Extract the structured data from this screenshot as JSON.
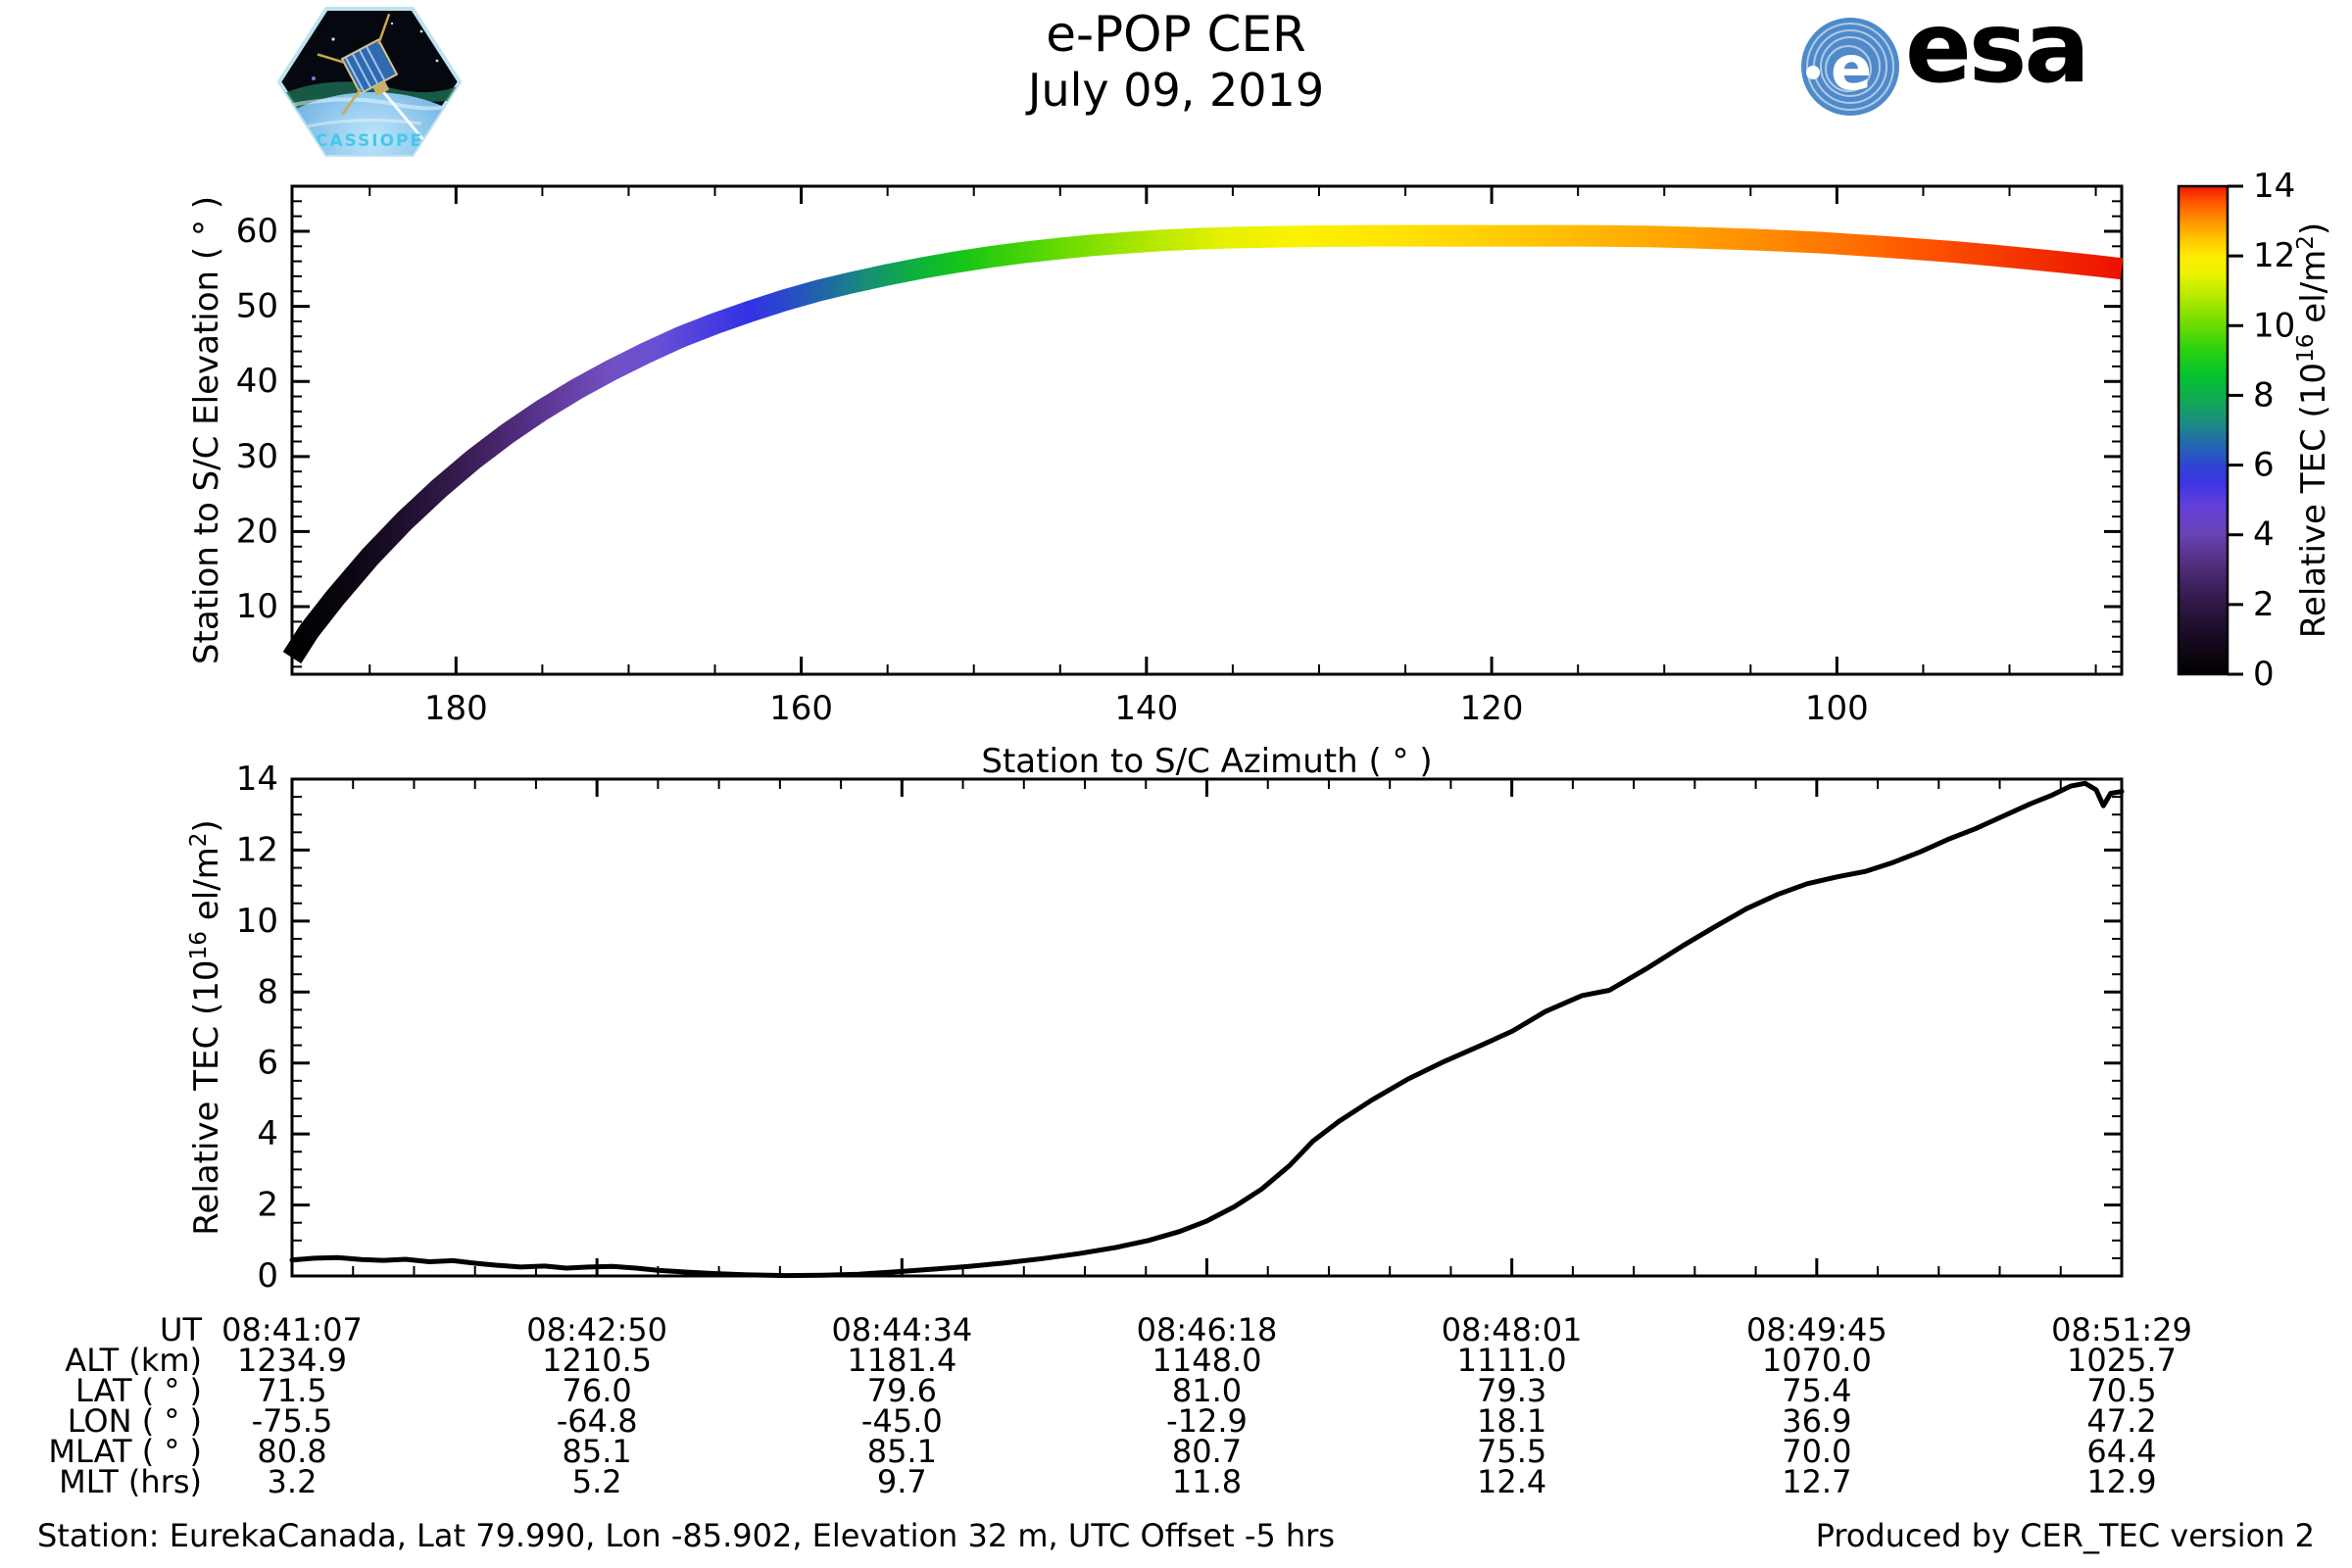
{
  "header": {
    "title": "e-POP CER",
    "date": "July 09, 2019",
    "cassiope_label": "CASSIOPE",
    "esa_label": "esa"
  },
  "colors": {
    "esa_text": "#1f2d80",
    "esa_circle": "#4e8ac9",
    "patch_border": "#bfe3f0",
    "patch_space": "#06080f",
    "patch_text": "#45c8ea",
    "curve": "#000000",
    "axis": "#000000"
  },
  "chart_data": [
    {
      "id": "elevation-vs-azimuth",
      "type": "scatter",
      "title": "",
      "xlabel": "Station to S/C Azimuth ( ° )",
      "ylabel": "Station to S/C Elevation ( ° )",
      "x_axis_reversed": true,
      "xlim": [
        189.5,
        83.5
      ],
      "ylim": [
        1,
        66
      ],
      "xticks": [
        180,
        160,
        140,
        120,
        100
      ],
      "xtick_minor_step": 5,
      "yticks": [
        10,
        20,
        30,
        40,
        50,
        60
      ],
      "ytick_minor_step": 2,
      "color_by": "Relative TEC (10^16 el/m^2)",
      "colormap_range": [
        0,
        14
      ],
      "points_az_el": [
        [
          189.5,
          3.2
        ],
        [
          188.5,
          6.8
        ],
        [
          187,
          11.2
        ],
        [
          185,
          16.6
        ],
        [
          183,
          21.4
        ],
        [
          181,
          25.7
        ],
        [
          179,
          29.6
        ],
        [
          177,
          33.1
        ],
        [
          175,
          36.2
        ],
        [
          173,
          39.0
        ],
        [
          171,
          41.5
        ],
        [
          169,
          43.8
        ],
        [
          167,
          45.9
        ],
        [
          165,
          47.7
        ],
        [
          163,
          49.3
        ],
        [
          161,
          50.8
        ],
        [
          159,
          52.1
        ],
        [
          157,
          53.2
        ],
        [
          155,
          54.2
        ],
        [
          153,
          55.1
        ],
        [
          151,
          55.9
        ],
        [
          149,
          56.6
        ],
        [
          147,
          57.2
        ],
        [
          145,
          57.7
        ],
        [
          143,
          58.15
        ],
        [
          141,
          58.5
        ],
        [
          139,
          58.8
        ],
        [
          137,
          59.0
        ],
        [
          135,
          59.15
        ],
        [
          133,
          59.25
        ],
        [
          131,
          59.3
        ],
        [
          129,
          59.35
        ],
        [
          127,
          59.4
        ],
        [
          125,
          59.4
        ],
        [
          123,
          59.4
        ],
        [
          121,
          59.4
        ],
        [
          119,
          59.4
        ],
        [
          117,
          59.4
        ],
        [
          115,
          59.4
        ],
        [
          113,
          59.35
        ],
        [
          111,
          59.3
        ],
        [
          109,
          59.2
        ],
        [
          107,
          59.05
        ],
        [
          105,
          58.9
        ],
        [
          103,
          58.7
        ],
        [
          101,
          58.5
        ],
        [
          99,
          58.2
        ],
        [
          97,
          57.9
        ],
        [
          95,
          57.55
        ],
        [
          93,
          57.2
        ],
        [
          91,
          56.8
        ],
        [
          89,
          56.35
        ],
        [
          87,
          55.9
        ],
        [
          85,
          55.4
        ],
        [
          83.5,
          55.0
        ]
      ],
      "gradient_stops": [
        [
          0.0,
          "#000000"
        ],
        [
          0.03,
          "#0a0510"
        ],
        [
          0.06,
          "#1d0f2c"
        ],
        [
          0.09,
          "#341b4e"
        ],
        [
          0.12,
          "#4d2a76"
        ],
        [
          0.15,
          "#653fa4"
        ],
        [
          0.175,
          "#7150c4"
        ],
        [
          0.2,
          "#684fd4"
        ],
        [
          0.225,
          "#4b3fde"
        ],
        [
          0.25,
          "#3232e4"
        ],
        [
          0.27,
          "#2a49cb"
        ],
        [
          0.29,
          "#2066a8"
        ],
        [
          0.315,
          "#178f74"
        ],
        [
          0.34,
          "#0cb13f"
        ],
        [
          0.365,
          "#15c517"
        ],
        [
          0.395,
          "#3ed207"
        ],
        [
          0.43,
          "#77dd00"
        ],
        [
          0.47,
          "#b4e800"
        ],
        [
          0.51,
          "#e6f000"
        ],
        [
          0.55,
          "#fcf200"
        ],
        [
          0.6,
          "#ffe400"
        ],
        [
          0.65,
          "#ffd000"
        ],
        [
          0.7,
          "#ffbb00"
        ],
        [
          0.75,
          "#ffa600"
        ],
        [
          0.8,
          "#ff8e00"
        ],
        [
          0.85,
          "#ff7000"
        ],
        [
          0.9,
          "#fc4f00"
        ],
        [
          0.95,
          "#f33000"
        ],
        [
          1.0,
          "#eb1200"
        ]
      ]
    },
    {
      "id": "tec-vs-time",
      "type": "line",
      "title": "",
      "xlabel": "",
      "ylabel_parts": [
        {
          "t": "Relative TEC (10",
          "sup": false
        },
        {
          "t": "16",
          "sup": true
        },
        {
          "t": " el/m",
          "sup": false
        },
        {
          "t": "2",
          "sup": true
        },
        {
          "t": ")",
          "sup": false
        }
      ],
      "ylim": [
        0,
        14
      ],
      "yticks": [
        0,
        2,
        4,
        6,
        8,
        10,
        12,
        14
      ],
      "ytick_minor_step": 0.5,
      "xtick_labels": [
        "08:41:07",
        "08:42:50",
        "08:44:34",
        "08:46:18",
        "08:48:01",
        "08:49:45",
        "08:51:29"
      ],
      "xtick_minor_per_major": 5,
      "series": [
        {
          "name": "Relative TEC",
          "points_frac_tec": [
            [
              0.0,
              0.45
            ],
            [
              0.012,
              0.5
            ],
            [
              0.025,
              0.52
            ],
            [
              0.038,
              0.46
            ],
            [
              0.05,
              0.44
            ],
            [
              0.062,
              0.47
            ],
            [
              0.075,
              0.4
            ],
            [
              0.088,
              0.43
            ],
            [
              0.1,
              0.36
            ],
            [
              0.112,
              0.3
            ],
            [
              0.125,
              0.25
            ],
            [
              0.138,
              0.28
            ],
            [
              0.15,
              0.22
            ],
            [
              0.162,
              0.25
            ],
            [
              0.175,
              0.27
            ],
            [
              0.188,
              0.22
            ],
            [
              0.2,
              0.16
            ],
            [
              0.215,
              0.11
            ],
            [
              0.23,
              0.07
            ],
            [
              0.25,
              0.03
            ],
            [
              0.27,
              0.01
            ],
            [
              0.29,
              0.02
            ],
            [
              0.31,
              0.05
            ],
            [
              0.33,
              0.12
            ],
            [
              0.35,
              0.19
            ],
            [
              0.37,
              0.27
            ],
            [
              0.39,
              0.37
            ],
            [
              0.41,
              0.49
            ],
            [
              0.43,
              0.63
            ],
            [
              0.45,
              0.8
            ],
            [
              0.468,
              1.0
            ],
            [
              0.485,
              1.25
            ],
            [
              0.5,
              1.55
            ],
            [
              0.515,
              1.95
            ],
            [
              0.53,
              2.45
            ],
            [
              0.545,
              3.1
            ],
            [
              0.558,
              3.8
            ],
            [
              0.572,
              4.35
            ],
            [
              0.59,
              4.95
            ],
            [
              0.61,
              5.55
            ],
            [
              0.63,
              6.05
            ],
            [
              0.65,
              6.5
            ],
            [
              0.667,
              6.9
            ],
            [
              0.685,
              7.45
            ],
            [
              0.705,
              7.9
            ],
            [
              0.72,
              8.05
            ],
            [
              0.74,
              8.65
            ],
            [
              0.76,
              9.3
            ],
            [
              0.778,
              9.85
            ],
            [
              0.795,
              10.35
            ],
            [
              0.812,
              10.75
            ],
            [
              0.828,
              11.05
            ],
            [
              0.845,
              11.25
            ],
            [
              0.86,
              11.4
            ],
            [
              0.875,
              11.65
            ],
            [
              0.89,
              11.95
            ],
            [
              0.905,
              12.3
            ],
            [
              0.92,
              12.6
            ],
            [
              0.935,
              12.95
            ],
            [
              0.95,
              13.3
            ],
            [
              0.962,
              13.55
            ],
            [
              0.972,
              13.8
            ],
            [
              0.98,
              13.88
            ],
            [
              0.986,
              13.7
            ],
            [
              0.99,
              13.25
            ],
            [
              0.994,
              13.6
            ],
            [
              1.0,
              13.65
            ]
          ]
        }
      ]
    }
  ],
  "colorbar": {
    "range": [
      0,
      14
    ],
    "ticks": [
      0,
      2,
      4,
      6,
      8,
      10,
      12,
      14
    ],
    "label_parts": [
      {
        "t": "Relative TEC (10",
        "sup": false
      },
      {
        "t": "16",
        "sup": true
      },
      {
        "t": " el/m",
        "sup": false
      },
      {
        "t": "2",
        "sup": true
      },
      {
        "t": ")",
        "sup": false
      }
    ],
    "stops": [
      [
        0,
        "#000000"
      ],
      [
        0.8,
        "#120818"
      ],
      [
        1.6,
        "#251236"
      ],
      [
        2.4,
        "#3a1e58"
      ],
      [
        3.2,
        "#533080"
      ],
      [
        4.0,
        "#6843b4"
      ],
      [
        4.8,
        "#643fd8"
      ],
      [
        5.5,
        "#3c35e6"
      ],
      [
        6.0,
        "#2e46d2"
      ],
      [
        6.6,
        "#2468b0"
      ],
      [
        7.2,
        "#1b8b84"
      ],
      [
        7.9,
        "#10ab52"
      ],
      [
        8.6,
        "#05c42c"
      ],
      [
        9.4,
        "#31d40c"
      ],
      [
        10.1,
        "#73de00"
      ],
      [
        10.8,
        "#b2e900"
      ],
      [
        11.5,
        "#ecf200"
      ],
      [
        12.0,
        "#ffec00"
      ],
      [
        12.5,
        "#ffc300"
      ],
      [
        13.0,
        "#ff9300"
      ],
      [
        13.5,
        "#ff5c00"
      ],
      [
        14,
        "#ef1600"
      ]
    ]
  },
  "table": {
    "row_headers": [
      "UT",
      "ALT (km)",
      "LAT ( ° )",
      "LON ( ° )",
      "MLAT ( ° )",
      "MLT (hrs)"
    ],
    "rows": [
      [
        "08:41:07",
        "08:42:50",
        "08:44:34",
        "08:46:18",
        "08:48:01",
        "08:49:45",
        "08:51:29"
      ],
      [
        "1234.9",
        "1210.5",
        "1181.4",
        "1148.0",
        "1111.0",
        "1070.0",
        "1025.7"
      ],
      [
        "71.5",
        "76.0",
        "79.6",
        "81.0",
        "79.3",
        "75.4",
        "70.5"
      ],
      [
        "-75.5",
        "-64.8",
        "-45.0",
        "-12.9",
        "18.1",
        "36.9",
        "47.2"
      ],
      [
        "80.8",
        "85.1",
        "85.1",
        "80.7",
        "75.5",
        "70.0",
        "64.4"
      ],
      [
        "3.2",
        "5.2",
        "9.7",
        "11.8",
        "12.4",
        "12.7",
        "12.9"
      ]
    ]
  },
  "footer": {
    "left": "Station: EurekaCanada, Lat 79.990, Lon -85.902, Elevation 32 m, UTC Offset -5 hrs",
    "right": "Produced by CER_TEC version 2"
  }
}
